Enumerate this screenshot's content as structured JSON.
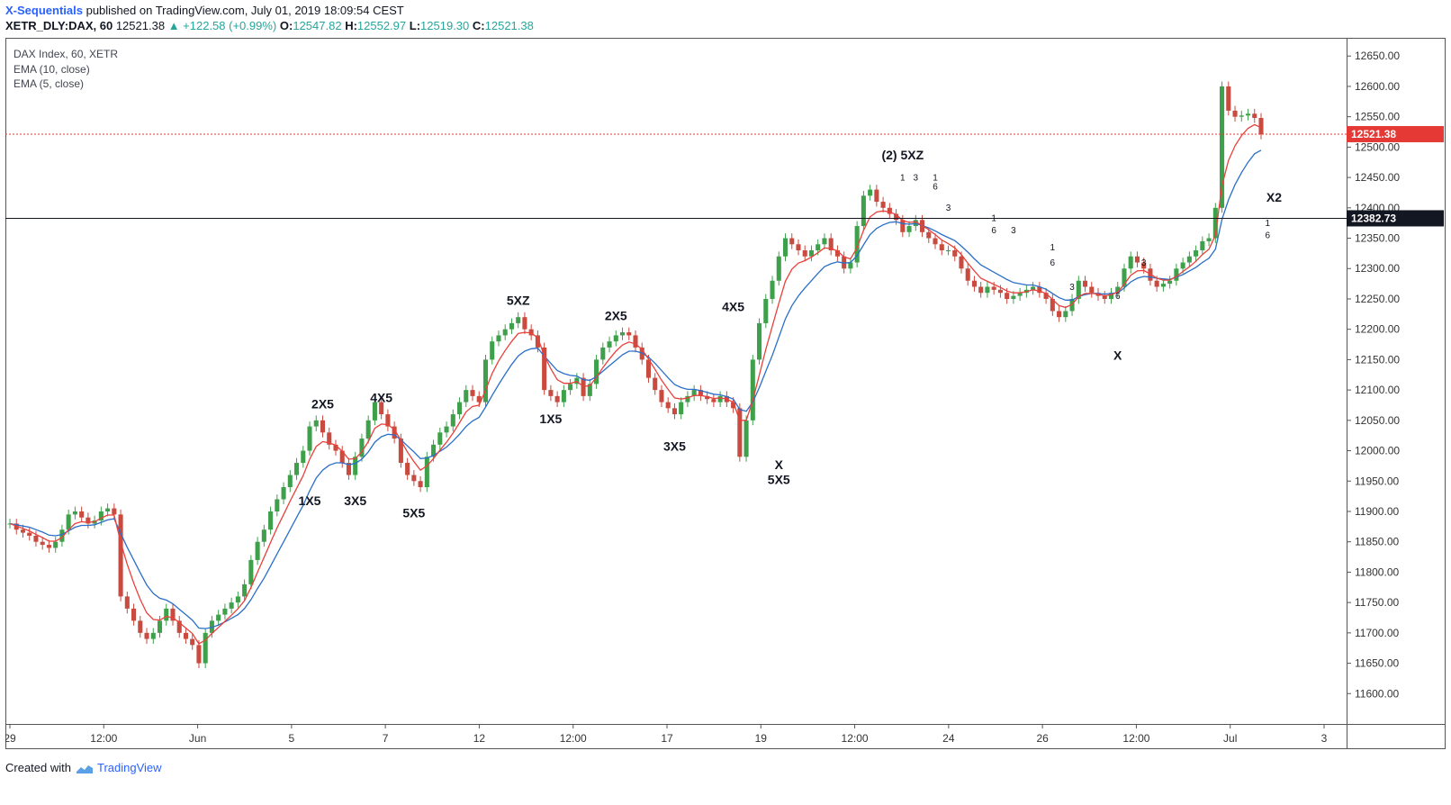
{
  "header": {
    "author": "X-Sequentials",
    "published": "published on TradingView.com, July 01, 2019 18:09:54 CEST",
    "symbol": "XETR_DLY:DAX, 60",
    "last": "12521.38",
    "change": "▲ +122.58 (+0.99%)",
    "o_label": "O:",
    "o_value": "12547.82",
    "h_label": "H:",
    "h_value": "12552.97",
    "l_label": "L:",
    "l_value": "12519.30",
    "c_label": "C:",
    "c_value": "12521.38"
  },
  "legend": {
    "title": "DAX Index, 60, XETR",
    "ema10": "EMA (10, close)",
    "ema5": "EMA (5, close)"
  },
  "footer": {
    "created": "Created with",
    "brand": "TradingView"
  },
  "colors": {
    "up": "#3ea04b",
    "down": "#c94a3e",
    "ema10": "#2a6fc9",
    "ema5": "#e8413c",
    "axis": "#555555",
    "grid_line": "#000000",
    "price_badge": "#e53935"
  },
  "chart_data": {
    "type": "candlestick",
    "interval": "60",
    "ylim": [
      11550,
      12680
    ],
    "y_ticks": [
      11600,
      11650,
      11700,
      11750,
      11800,
      11850,
      11900,
      11950,
      12000,
      12050,
      12100,
      12150,
      12200,
      12250,
      12300,
      12350,
      12400,
      12450,
      12500,
      12550,
      12600,
      12650
    ],
    "y_tick_labels": [
      "11600.00",
      "11650.00",
      "11700.00",
      "11750.00",
      "11800.00",
      "11850.00",
      "11900.00",
      "11950.00",
      "12000.00",
      "12050.00",
      "12100.00",
      "12150.00",
      "12200.00",
      "12250.00",
      "12300.00",
      "12350.00",
      "12400.00",
      "12450.00",
      "12500.00",
      "12550.00",
      "12600.00",
      "12650.00"
    ],
    "x_ticks": [
      "29",
      "12:00",
      "Jun",
      "5",
      "7",
      "12",
      "12:00",
      "17",
      "19",
      "12:00",
      "24",
      "26",
      "12:00",
      "Jul",
      "3"
    ],
    "price_labels": [
      {
        "value": 12521.38,
        "text": "12521.38",
        "color": "#e53935",
        "line": "dotted"
      },
      {
        "value": 12382.73,
        "text": "12382.73",
        "color": "#131722",
        "line": "solid"
      }
    ],
    "closes": [
      11880,
      11870,
      11865,
      11860,
      11850,
      11845,
      11840,
      11850,
      11870,
      11895,
      11900,
      11890,
      11880,
      11885,
      11900,
      11905,
      11895,
      11760,
      11740,
      11720,
      11700,
      11690,
      11700,
      11720,
      11740,
      11720,
      11700,
      11690,
      11680,
      11650,
      11700,
      11720,
      11730,
      11740,
      11750,
      11760,
      11780,
      11820,
      11850,
      11870,
      11900,
      11920,
      11940,
      11960,
      11980,
      12000,
      12040,
      12050,
      12030,
      12010,
      12000,
      11980,
      11960,
      11990,
      12020,
      12050,
      12080,
      12060,
      12040,
      12020,
      11980,
      11960,
      11950,
      11940,
      11990,
      12010,
      12030,
      12040,
      12060,
      12080,
      12100,
      12090,
      12080,
      12150,
      12180,
      12190,
      12200,
      12210,
      12220,
      12200,
      12190,
      12170,
      12100,
      12090,
      12080,
      12100,
      12110,
      12120,
      12090,
      12110,
      12150,
      12170,
      12180,
      12190,
      12195,
      12190,
      12170,
      12150,
      12120,
      12100,
      12080,
      12070,
      12060,
      12080,
      12090,
      12100,
      12090,
      12085,
      12080,
      12090,
      12080,
      12070,
      11990,
      12050,
      12150,
      12210,
      12250,
      12280,
      12320,
      12350,
      12340,
      12330,
      12320,
      12330,
      12340,
      12350,
      12330,
      12320,
      12300,
      12310,
      12370,
      12420,
      12430,
      12410,
      12400,
      12390,
      12380,
      12360,
      12370,
      12380,
      12360,
      12350,
      12340,
      12330,
      12330,
      12320,
      12300,
      12280,
      12270,
      12260,
      12270,
      12265,
      12260,
      12250,
      12255,
      12260,
      12265,
      12270,
      12260,
      12250,
      12230,
      12220,
      12230,
      12250,
      12280,
      12270,
      12260,
      12255,
      12250,
      12260,
      12270,
      12300,
      12320,
      12310,
      12300,
      12280,
      12270,
      12275,
      12280,
      12300,
      12310,
      12320,
      12330,
      12345,
      12350,
      12400,
      12600,
      12560,
      12550,
      12552,
      12555,
      12548,
      12521
    ],
    "ema5": [
      11880,
      11876,
      11872,
      11868,
      11862,
      11857,
      11851,
      11851,
      11857,
      11870,
      11880,
      11883,
      11882,
      11883,
      11889,
      11894,
      11894,
      11849,
      11813,
      11782,
      11755,
      11733,
      11722,
      11721,
      11727,
      11725,
      11717,
      11708,
      11699,
      11682,
      11688,
      11699,
      11709,
      11719,
      11729,
      11740,
      11753,
      11775,
      11800,
      11824,
      11849,
      11873,
      11895,
      11917,
      11938,
      11959,
      11986,
      12007,
      12015,
      12013,
      12009,
      11999,
      11986,
      11987,
      11998,
      12015,
      12037,
      12044,
      12043,
      12035,
      12017,
      11998,
      11982,
      11968,
      11975,
      11987,
      12001,
      12014,
      12029,
      12046,
      12064,
      12073,
      12075,
      12100,
      12127,
      12148,
      12165,
      12180,
      12193,
      12195,
      12194,
      12186,
      12157,
      12135,
      12117,
      12111,
      12111,
      12114,
      12106,
      12107,
      12121,
      12137,
      12151,
      12164,
      12174,
      12179,
      12176,
      12167,
      12151,
      12134,
      12116,
      12101,
      12087,
      12085,
      12087,
      12091,
      12091,
      12089,
      12086,
      12087,
      12085,
      12080,
      12050,
      12050,
      12083,
      12125,
      12167,
      12205,
      12243,
      12279,
      12299,
      12309,
      12313,
      12319,
      12326,
      12334,
      12333,
      12329,
      12319,
      12316,
      12334,
      12363,
      12385,
      12393,
      12395,
      12393,
      12389,
      12379,
      12376,
      12377,
      12371,
      12364,
      12356,
      12347,
      12341,
      12334,
      12323,
      12309,
      12296,
      12284,
      12279,
      12274,
      12269,
      12263,
      12260,
      12260,
      12262,
      12265,
      12263,
      12259,
      12249,
      12239,
      12236,
      12241,
      12254,
      12259,
      12259,
      12258,
      12255,
      12257,
      12261,
      12274,
      12289,
      12296,
      12297,
      12291,
      12284,
      12281,
      12281,
      12287,
      12295,
      12303,
      12312,
      12323,
      12332,
      12355,
      12437,
      12478,
      12502,
      12519,
      12531,
      12537,
      12532
    ],
    "ema10": [
      11880,
      11878,
      11876,
      11874,
      11870,
      11866,
      11861,
      11860,
      11862,
      11868,
      11874,
      11877,
      11877,
      11878,
      11882,
      11886,
      11888,
      11864,
      11841,
      11820,
      11799,
      11779,
      11765,
      11757,
      11754,
      11748,
      11739,
      11730,
      11721,
      11708,
      11707,
      11709,
      11713,
      11718,
      11724,
      11730,
      11740,
      11755,
      11773,
      11790,
      11810,
      11830,
      11850,
      11870,
      11890,
      11910,
      11934,
      11955,
      11968,
      11976,
      11980,
      11980,
      11977,
      11979,
      11986,
      11998,
      12014,
      12023,
      12027,
      12026,
      12018,
      12008,
      11998,
      11987,
      11988,
      11992,
      11999,
      12006,
      12016,
      12027,
      12040,
      12049,
      12055,
      12072,
      12091,
      12109,
      12126,
      12142,
      12156,
      12164,
      12168,
      12169,
      12156,
      12144,
      12132,
      12127,
      12124,
      12123,
      12117,
      12116,
      12122,
      12131,
      12140,
      12149,
      12158,
      12164,
      12164,
      12161,
      12154,
      12144,
      12132,
      12120,
      12109,
      12104,
      12101,
      12101,
      12099,
      12096,
      12093,
      12092,
      12089,
      12085,
      12068,
      12065,
      12080,
      12104,
      12131,
      12157,
      12187,
      12217,
      12239,
      12255,
      12268,
      12280,
      12292,
      12303,
      12308,
      12311,
      12309,
      12310,
      12321,
      12339,
      12356,
      12366,
      12372,
      12376,
      12377,
      12374,
      12373,
      12374,
      12371,
      12367,
      12362,
      12356,
      12351,
      12346,
      12337,
      12327,
      12316,
      12306,
      12300,
      12294,
      12288,
      12282,
      12277,
      12275,
      12273,
      12273,
      12270,
      12266,
      12259,
      12252,
      12248,
      12248,
      12254,
      12257,
      12259,
      12259,
      12258,
      12259,
      12260,
      12268,
      12278,
      12284,
      12287,
      12286,
      12284,
      12283,
      12282,
      12286,
      12290,
      12296,
      12302,
      12310,
      12317,
      12332,
      12381,
      12413,
      12438,
      12458,
      12475,
      12489,
      12495
    ]
  },
  "annotations": [
    {
      "text": "2X5",
      "price": 12070,
      "bar": 48
    },
    {
      "text": "4X5",
      "price": 12080,
      "bar": 57
    },
    {
      "text": "1X5",
      "price": 11910,
      "bar": 46
    },
    {
      "text": "3X5",
      "price": 11910,
      "bar": 53
    },
    {
      "text": "5X5",
      "price": 11890,
      "bar": 62
    },
    {
      "text": "5XZ",
      "price": 12240,
      "bar": 78
    },
    {
      "text": "2X5",
      "price": 12215,
      "bar": 93
    },
    {
      "text": "1X5",
      "price": 12045,
      "bar": 83
    },
    {
      "text": "3X5",
      "price": 12000,
      "bar": 102
    },
    {
      "text": "4X5",
      "price": 12230,
      "bar": 111
    },
    {
      "text": "X",
      "price": 11970,
      "bar": 118
    },
    {
      "text": "5X5",
      "price": 11945,
      "bar": 118
    },
    {
      "text": "(2) 5XZ",
      "price": 12480,
      "bar": 137
    },
    {
      "text": "X",
      "price": 12150,
      "bar": 170
    },
    {
      "text": "X2",
      "price": 12410,
      "bar": 194
    }
  ],
  "setup_counts": [
    {
      "text": "1",
      "price": 12445,
      "bar": 137
    },
    {
      "text": "3",
      "price": 12445,
      "bar": 139
    },
    {
      "text": "1",
      "price": 12445,
      "bar": 142
    },
    {
      "text": "6",
      "price": 12430,
      "bar": 142
    },
    {
      "text": "3",
      "price": 12395,
      "bar": 144
    },
    {
      "text": "1",
      "price": 12378,
      "bar": 151
    },
    {
      "text": "6",
      "price": 12358,
      "bar": 151
    },
    {
      "text": "3",
      "price": 12358,
      "bar": 154
    },
    {
      "text": "1",
      "price": 12330,
      "bar": 160
    },
    {
      "text": "6",
      "price": 12305,
      "bar": 160
    },
    {
      "text": "3",
      "price": 12265,
      "bar": 163
    },
    {
      "text": "6",
      "price": 12250,
      "bar": 170
    },
    {
      "text": "3",
      "price": 12305,
      "bar": 174
    },
    {
      "text": "1",
      "price": 12370,
      "bar": 193
    },
    {
      "text": "6",
      "price": 12350,
      "bar": 193
    }
  ]
}
